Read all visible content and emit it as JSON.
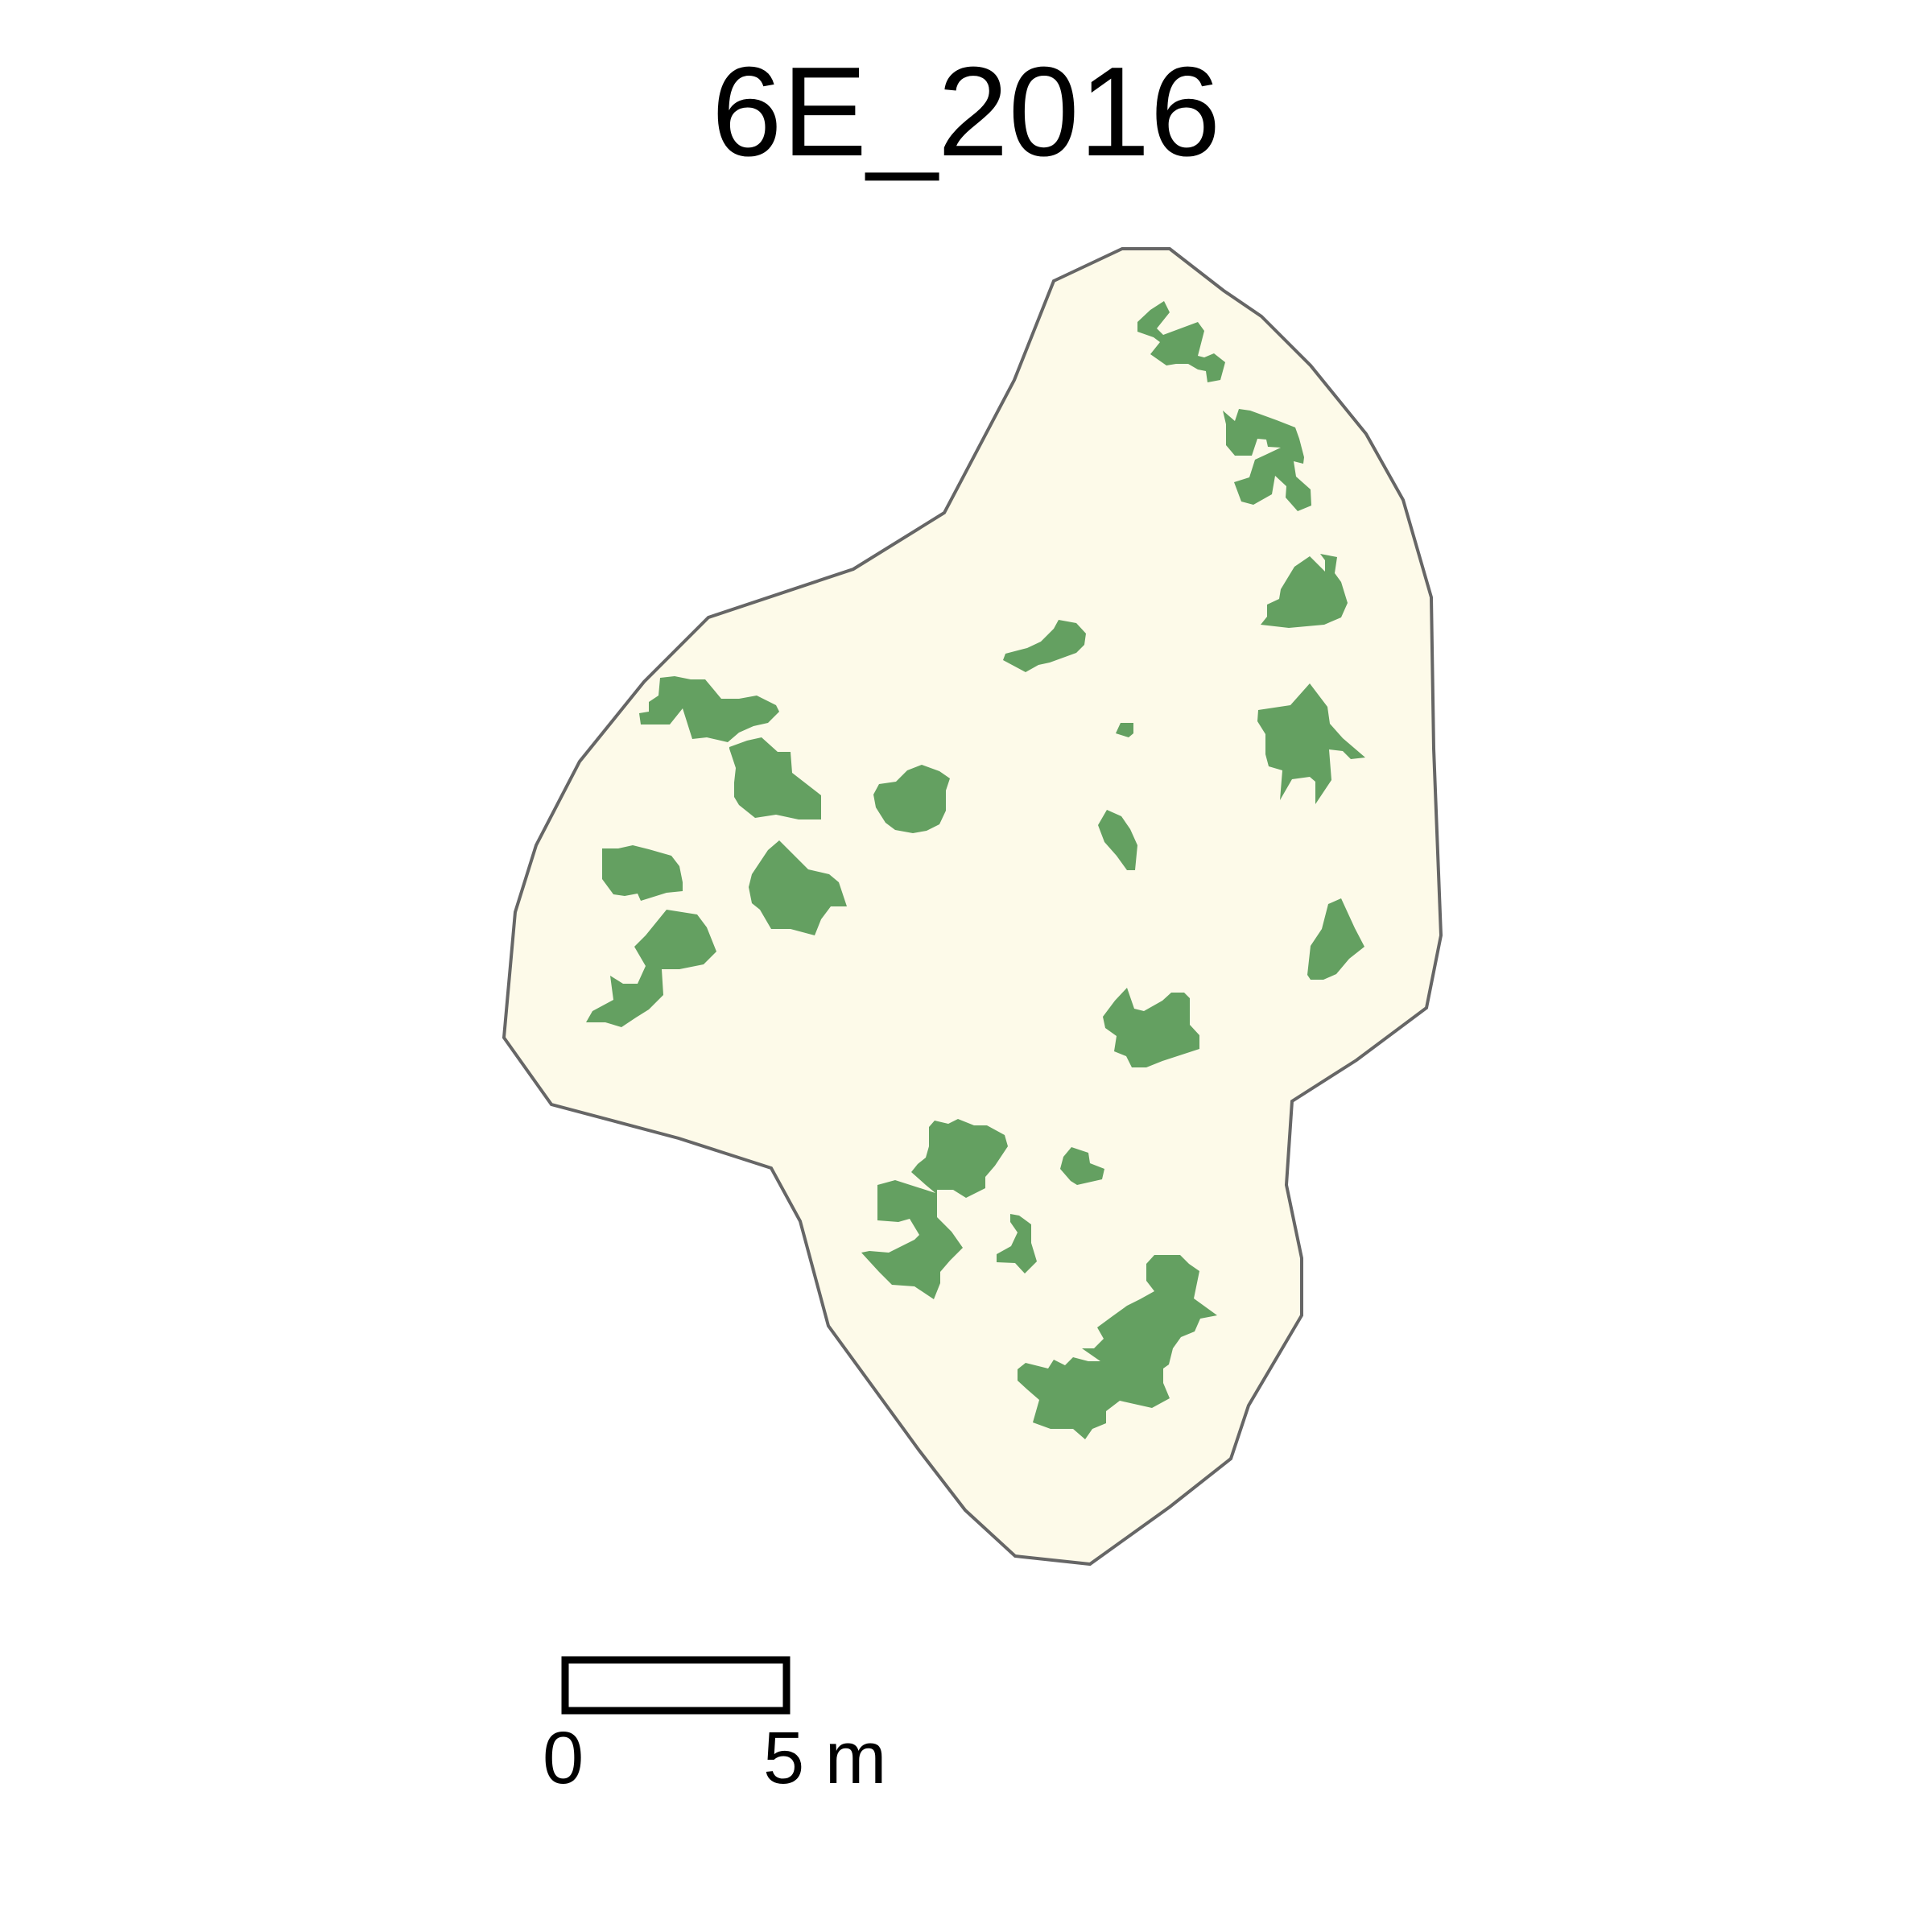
{
  "title": "6E_2016",
  "colors": {
    "plot_fill": "#fdfae9",
    "plot_outline": "#666666",
    "canopy": "#64a061",
    "scalebar": "#000000"
  },
  "scalebar": {
    "start_label": "0",
    "end_label": "5 m"
  }
}
